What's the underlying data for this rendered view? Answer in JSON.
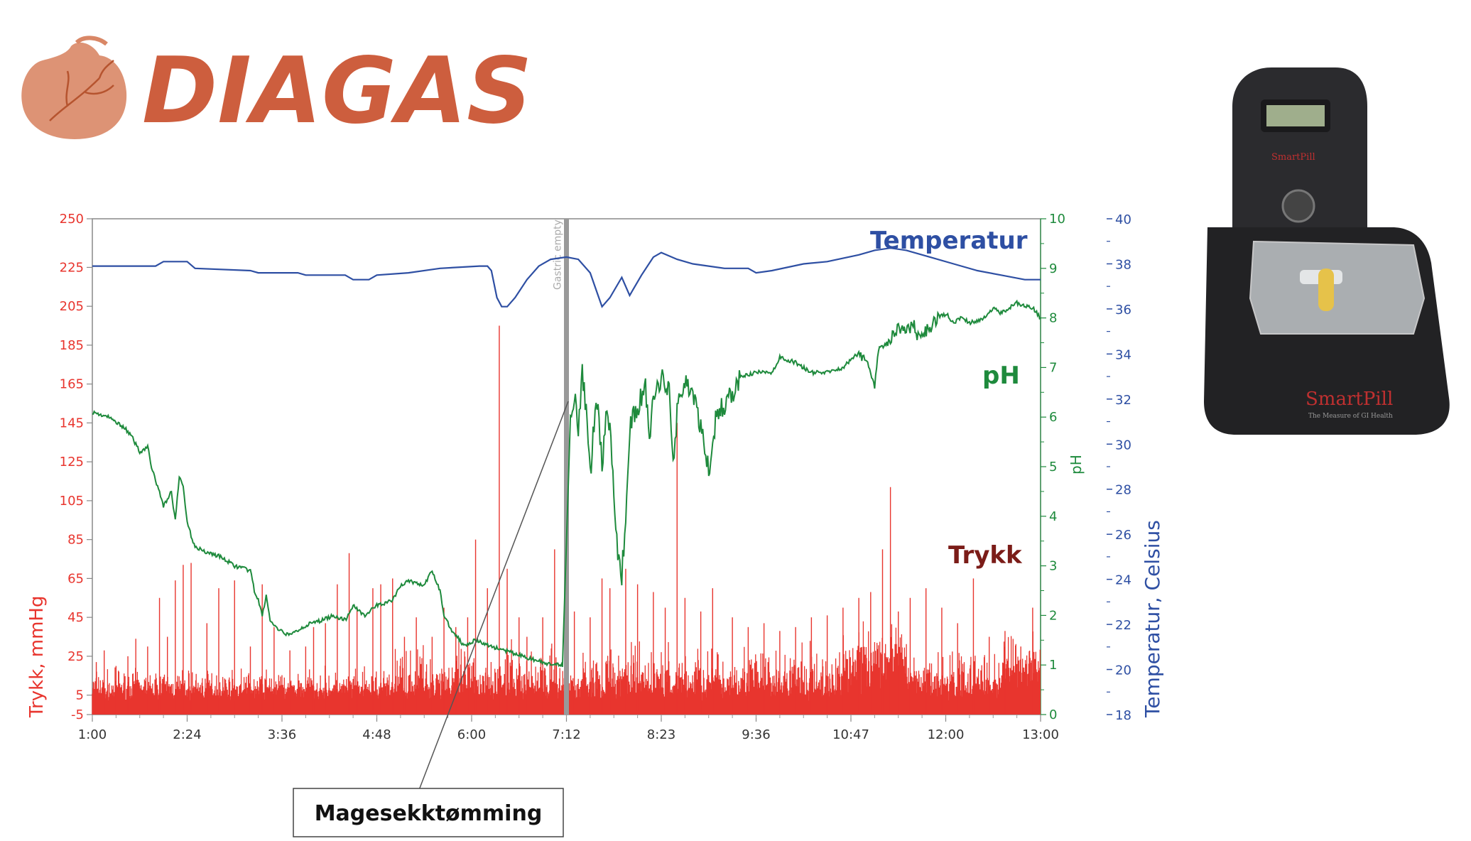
{
  "logo": {
    "name": "DIAGAS"
  },
  "device_image": {
    "brand": "SmartPill",
    "tagline": "The Measure of GI Health"
  },
  "chart_data": {
    "type": "line",
    "x_ticks": [
      "1:00",
      "2:24",
      "3:36",
      "4:48",
      "6:00",
      "7:12",
      "8:23",
      "9:36",
      "10:47",
      "12:00",
      "13:00"
    ],
    "y_left": {
      "label": "Trykk, mmHg",
      "ticks": [
        250,
        225,
        205,
        185,
        165,
        145,
        125,
        105,
        85,
        65,
        45,
        25,
        5,
        -5
      ],
      "color": "#e8352e"
    },
    "y_right_ph": {
      "label": "pH",
      "ticks": [
        10,
        9,
        8,
        7,
        6,
        5,
        4,
        3,
        2,
        1,
        0
      ],
      "color": "#1e8a3c"
    },
    "y_right_temp": {
      "label": "Temperatur, Celsius",
      "ticks": [
        40,
        38,
        36,
        34,
        32,
        30,
        28,
        26,
        24,
        22,
        20,
        18
      ],
      "color": "#2e4fa3"
    },
    "marker": {
      "x_hours": 7.0,
      "label": "Gastric empty"
    },
    "annotation": {
      "text": "Magesekktømming"
    },
    "series": [
      {
        "name": "Temperatur",
        "axis": "temp",
        "color": "#2e4fa3",
        "points": [
          [
            1.0,
            37.9
          ],
          [
            1.8,
            37.9
          ],
          [
            1.9,
            38.1
          ],
          [
            2.2,
            38.1
          ],
          [
            2.3,
            37.8
          ],
          [
            3.0,
            37.7
          ],
          [
            3.1,
            37.6
          ],
          [
            3.6,
            37.6
          ],
          [
            3.7,
            37.5
          ],
          [
            4.2,
            37.5
          ],
          [
            4.3,
            37.3
          ],
          [
            4.5,
            37.3
          ],
          [
            4.6,
            37.5
          ],
          [
            5.0,
            37.6
          ],
          [
            5.4,
            37.8
          ],
          [
            5.9,
            37.9
          ],
          [
            6.0,
            37.9
          ],
          [
            6.05,
            37.7
          ],
          [
            6.12,
            36.5
          ],
          [
            6.18,
            36.1
          ],
          [
            6.25,
            36.1
          ],
          [
            6.35,
            36.5
          ],
          [
            6.5,
            37.3
          ],
          [
            6.65,
            37.9
          ],
          [
            6.8,
            38.2
          ],
          [
            7.0,
            38.3
          ],
          [
            7.15,
            38.2
          ],
          [
            7.3,
            37.6
          ],
          [
            7.4,
            36.6
          ],
          [
            7.45,
            36.1
          ],
          [
            7.55,
            36.5
          ],
          [
            7.7,
            37.4
          ],
          [
            7.8,
            36.6
          ],
          [
            7.95,
            37.5
          ],
          [
            8.1,
            38.3
          ],
          [
            8.2,
            38.5
          ],
          [
            8.4,
            38.2
          ],
          [
            8.6,
            38.0
          ],
          [
            9.0,
            37.8
          ],
          [
            9.3,
            37.8
          ],
          [
            9.4,
            37.6
          ],
          [
            9.6,
            37.7
          ],
          [
            10.0,
            38.0
          ],
          [
            10.3,
            38.1
          ],
          [
            10.7,
            38.4
          ],
          [
            10.9,
            38.6
          ],
          [
            11.1,
            38.7
          ],
          [
            11.3,
            38.6
          ],
          [
            11.6,
            38.3
          ],
          [
            11.9,
            38.0
          ],
          [
            12.2,
            37.7
          ],
          [
            12.5,
            37.5
          ],
          [
            12.8,
            37.3
          ],
          [
            13.0,
            37.3
          ]
        ]
      },
      {
        "name": "pH",
        "axis": "ph",
        "color": "#1e8a3c",
        "points": [
          [
            1.0,
            6.1
          ],
          [
            1.2,
            6.0
          ],
          [
            1.4,
            5.8
          ],
          [
            1.5,
            5.6
          ],
          [
            1.6,
            5.3
          ],
          [
            1.7,
            5.4
          ],
          [
            1.75,
            5.0
          ],
          [
            1.8,
            4.7
          ],
          [
            1.85,
            4.5
          ],
          [
            1.9,
            4.2
          ],
          [
            2.0,
            4.5
          ],
          [
            2.05,
            3.9
          ],
          [
            2.1,
            4.8
          ],
          [
            2.15,
            4.6
          ],
          [
            2.2,
            3.9
          ],
          [
            2.25,
            3.6
          ],
          [
            2.3,
            3.4
          ],
          [
            2.4,
            3.3
          ],
          [
            2.6,
            3.2
          ],
          [
            2.8,
            3.0
          ],
          [
            3.0,
            2.9
          ],
          [
            3.05,
            2.5
          ],
          [
            3.1,
            2.3
          ],
          [
            3.15,
            2.0
          ],
          [
            3.2,
            2.4
          ],
          [
            3.25,
            1.9
          ],
          [
            3.35,
            1.7
          ],
          [
            3.5,
            1.6
          ],
          [
            3.7,
            1.8
          ],
          [
            3.9,
            1.9
          ],
          [
            4.05,
            2.0
          ],
          [
            4.2,
            1.9
          ],
          [
            4.3,
            2.2
          ],
          [
            4.45,
            2.0
          ],
          [
            4.6,
            2.2
          ],
          [
            4.8,
            2.3
          ],
          [
            4.9,
            2.6
          ],
          [
            5.0,
            2.7
          ],
          [
            5.2,
            2.6
          ],
          [
            5.3,
            2.9
          ],
          [
            5.4,
            2.5
          ],
          [
            5.45,
            2.0
          ],
          [
            5.55,
            1.7
          ],
          [
            5.7,
            1.4
          ],
          [
            5.85,
            1.5
          ],
          [
            6.0,
            1.4
          ],
          [
            6.2,
            1.3
          ],
          [
            6.4,
            1.2
          ],
          [
            6.6,
            1.1
          ],
          [
            6.8,
            1.0
          ],
          [
            6.95,
            1.0
          ],
          [
            7.05,
            6.0
          ],
          [
            7.1,
            6.5
          ],
          [
            7.15,
            5.8
          ],
          [
            7.2,
            6.9
          ],
          [
            7.25,
            6.1
          ],
          [
            7.3,
            4.8
          ],
          [
            7.35,
            5.9
          ],
          [
            7.4,
            6.3
          ],
          [
            7.45,
            5.0
          ],
          [
            7.5,
            6.1
          ],
          [
            7.55,
            5.8
          ],
          [
            7.6,
            4.5
          ],
          [
            7.65,
            3.3
          ],
          [
            7.7,
            2.8
          ],
          [
            7.75,
            4.0
          ],
          [
            7.8,
            5.8
          ],
          [
            7.9,
            6.2
          ],
          [
            8.0,
            6.6
          ],
          [
            8.05,
            5.6
          ],
          [
            8.1,
            6.3
          ],
          [
            8.2,
            6.8
          ],
          [
            8.3,
            6.6
          ],
          [
            8.35,
            5.0
          ],
          [
            8.4,
            6.1
          ],
          [
            8.5,
            6.8
          ],
          [
            8.6,
            6.4
          ],
          [
            8.7,
            5.8
          ],
          [
            8.8,
            4.9
          ],
          [
            8.9,
            6.1
          ],
          [
            9.0,
            6.2
          ],
          [
            9.1,
            6.5
          ],
          [
            9.2,
            6.8
          ],
          [
            9.4,
            6.9
          ],
          [
            9.6,
            6.9
          ],
          [
            9.7,
            7.2
          ],
          [
            9.9,
            7.1
          ],
          [
            10.1,
            6.9
          ],
          [
            10.3,
            6.9
          ],
          [
            10.5,
            7.0
          ],
          [
            10.7,
            7.3
          ],
          [
            10.8,
            7.1
          ],
          [
            10.9,
            6.7
          ],
          [
            10.95,
            7.4
          ],
          [
            11.1,
            7.6
          ],
          [
            11.2,
            7.8
          ],
          [
            11.3,
            7.7
          ],
          [
            11.4,
            7.9
          ],
          [
            11.45,
            7.6
          ],
          [
            11.6,
            7.8
          ],
          [
            11.7,
            8.0
          ],
          [
            11.8,
            8.1
          ],
          [
            11.9,
            7.9
          ],
          [
            12.0,
            8.0
          ],
          [
            12.1,
            7.9
          ],
          [
            12.3,
            8.0
          ],
          [
            12.4,
            8.2
          ],
          [
            12.5,
            8.1
          ],
          [
            12.7,
            8.3
          ],
          [
            12.9,
            8.2
          ],
          [
            13.0,
            8.0
          ]
        ]
      },
      {
        "name": "Trykk",
        "axis": "pressure",
        "color": "#e8352e",
        "peaks": [
          [
            1.05,
            22
          ],
          [
            1.15,
            28
          ],
          [
            1.3,
            20
          ],
          [
            1.45,
            25
          ],
          [
            1.55,
            34
          ],
          [
            1.7,
            30
          ],
          [
            1.85,
            55
          ],
          [
            1.95,
            35
          ],
          [
            2.05,
            64
          ],
          [
            2.15,
            72
          ],
          [
            2.25,
            73
          ],
          [
            2.45,
            42
          ],
          [
            2.6,
            60
          ],
          [
            2.8,
            64
          ],
          [
            3.0,
            30
          ],
          [
            3.15,
            62
          ],
          [
            3.3,
            40
          ],
          [
            3.5,
            28
          ],
          [
            3.7,
            30
          ],
          [
            3.8,
            40
          ],
          [
            3.95,
            42
          ],
          [
            4.1,
            62
          ],
          [
            4.25,
            78
          ],
          [
            4.35,
            50
          ],
          [
            4.55,
            60
          ],
          [
            4.65,
            62
          ],
          [
            4.8,
            65
          ],
          [
            4.95,
            35
          ],
          [
            5.1,
            45
          ],
          [
            5.3,
            35
          ],
          [
            5.45,
            50
          ],
          [
            5.6,
            40
          ],
          [
            5.75,
            45
          ],
          [
            5.85,
            85
          ],
          [
            6.0,
            60
          ],
          [
            6.15,
            195
          ],
          [
            6.25,
            70
          ],
          [
            6.4,
            45
          ],
          [
            6.5,
            35
          ],
          [
            6.7,
            45
          ],
          [
            6.85,
            80
          ],
          [
            7.1,
            48
          ],
          [
            7.3,
            45
          ],
          [
            7.45,
            65
          ],
          [
            7.55,
            60
          ],
          [
            7.75,
            70
          ],
          [
            7.9,
            62
          ],
          [
            8.1,
            58
          ],
          [
            8.25,
            50
          ],
          [
            8.4,
            145
          ],
          [
            8.5,
            55
          ],
          [
            8.7,
            48
          ],
          [
            8.85,
            60
          ],
          [
            9.1,
            45
          ],
          [
            9.3,
            40
          ],
          [
            9.5,
            42
          ],
          [
            9.7,
            38
          ],
          [
            9.9,
            40
          ],
          [
            10.1,
            45
          ],
          [
            10.3,
            46
          ],
          [
            10.5,
            50
          ],
          [
            10.7,
            55
          ],
          [
            10.85,
            58
          ],
          [
            11.0,
            80
          ],
          [
            11.1,
            112
          ],
          [
            11.2,
            48
          ],
          [
            11.35,
            55
          ],
          [
            11.55,
            60
          ],
          [
            11.75,
            50
          ],
          [
            11.95,
            42
          ],
          [
            12.15,
            65
          ],
          [
            12.35,
            35
          ],
          [
            12.55,
            38
          ],
          [
            12.75,
            30
          ],
          [
            12.9,
            50
          ]
        ]
      }
    ]
  }
}
